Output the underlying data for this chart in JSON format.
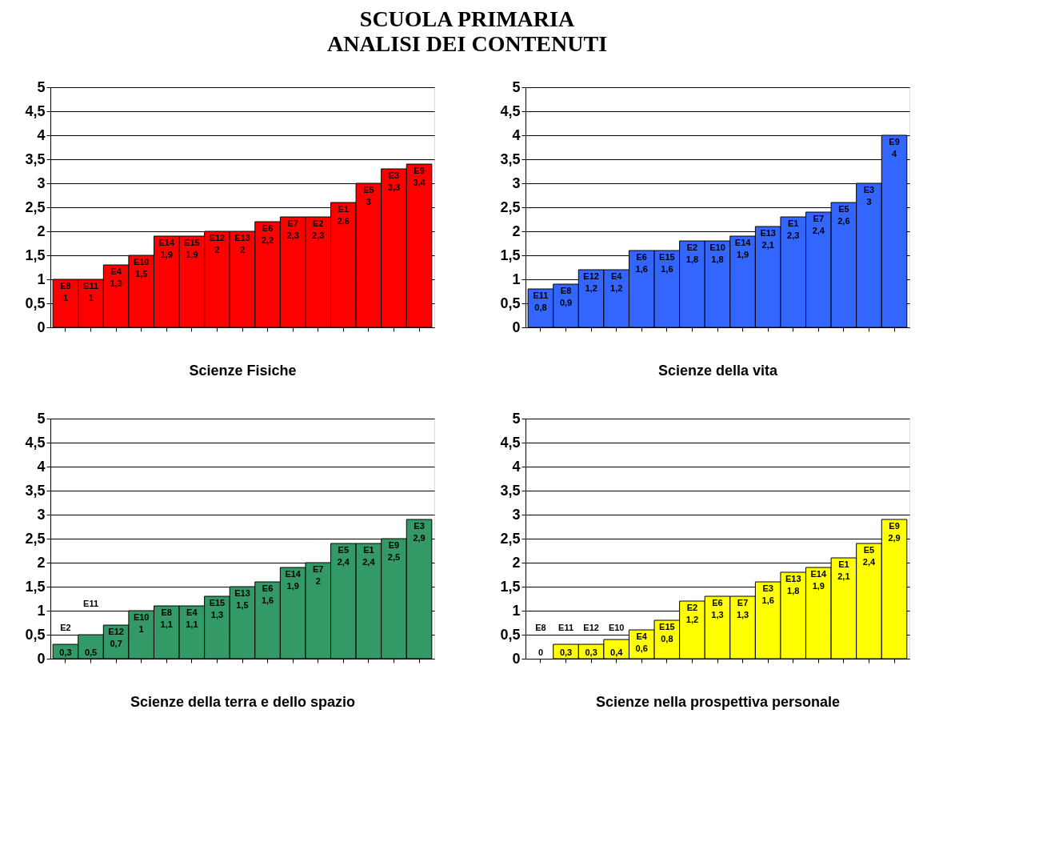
{
  "chart_data": [
    {
      "type": "bar",
      "title": "SCUOLA PRIMARIA",
      "subtitle": "ANALISI DEI CONTENUTI",
      "xlabel": "Scienze Fisiche",
      "color": "#ff0000",
      "categories": [
        "E8",
        "E11",
        "E4",
        "E10",
        "E14",
        "E15",
        "E12",
        "E13",
        "E6",
        "E7",
        "E2",
        "E1",
        "E5",
        "E3",
        "E9"
      ],
      "values": [
        1,
        1,
        1.3,
        1.5,
        1.9,
        1.9,
        2,
        2,
        2.2,
        2.3,
        2.3,
        2.6,
        3,
        3.3,
        3.4
      ],
      "value_labels": [
        "1",
        "1",
        "1,3",
        "1,5",
        "1,9",
        "1,9",
        "2",
        "2",
        "2,2",
        "2,3",
        "2,3",
        "2,6",
        "3",
        "3,3",
        "3,4"
      ],
      "ylim": [
        0,
        5
      ],
      "yticks": [
        0,
        {
          "value": 0.5,
          "label": "0,5"
        },
        1,
        {
          "value": 1.5,
          "label": "1,5"
        },
        2,
        {
          "value": 2.5,
          "label": "2,5"
        },
        3,
        {
          "value": 3.5,
          "label": "3,5"
        },
        4,
        {
          "value": 4.5,
          "label": "4,5"
        },
        5
      ],
      "grid": "y",
      "tick_labels": "y"
    },
    {
      "type": "bar",
      "xlabel": "Scienze della vita",
      "color": "#3366ff",
      "categories": [
        "E11",
        "E8",
        "E12",
        "E4",
        "E6",
        "E15",
        "E2",
        "E10",
        "E14",
        "E13",
        "E1",
        "E7",
        "E5",
        "E3",
        "E9"
      ],
      "values": [
        0.8,
        0.9,
        1.2,
        1.2,
        1.6,
        1.6,
        1.8,
        1.8,
        1.9,
        2.1,
        2.3,
        2.4,
        2.6,
        3,
        4
      ],
      "value_labels": [
        "0,8",
        "0,9",
        "1,2",
        "1,2",
        "1,6",
        "1,6",
        "1,8",
        "1,8",
        "1,9",
        "2,1",
        "2,3",
        "2,4",
        "2,6",
        "3",
        "4"
      ],
      "ylim": [
        0,
        5
      ],
      "yticks": [
        0,
        {
          "value": 0.5,
          "label": "0,5"
        },
        1,
        {
          "value": 1.5,
          "label": "1,5"
        },
        2,
        {
          "value": 2.5,
          "label": "2,5"
        },
        3,
        {
          "value": 3.5,
          "label": "3,5"
        },
        4,
        {
          "value": 4.5,
          "label": "4,5"
        },
        5
      ],
      "grid": "y",
      "tick_labels": "y"
    },
    {
      "type": "bar",
      "xlabel": "Scienze della terra e dello spazio",
      "color": "#339966",
      "categories": [
        "E2",
        "E11",
        "E12",
        "E10",
        "E8",
        "E4",
        "E15",
        "E13",
        "E6",
        "E14",
        "E7",
        "E5",
        "E1",
        "E9",
        "E3"
      ],
      "values": [
        0.3,
        0.5,
        0.7,
        1,
        1.1,
        1.1,
        1.3,
        1.5,
        1.6,
        1.9,
        2,
        2.4,
        2.4,
        2.5,
        2.9
      ],
      "value_labels": [
        "0,3",
        "0,5",
        "0,7",
        "1",
        "1,1",
        "1,1",
        "1,3",
        "1,5",
        "1,6",
        "1,9",
        "2",
        "2,4",
        "2,4",
        "2,5",
        "2,9"
      ],
      "ylim": [
        0,
        5
      ],
      "yticks": [
        0,
        {
          "value": 0.5,
          "label": "0,5"
        },
        1,
        {
          "value": 1.5,
          "label": "1,5"
        },
        2,
        {
          "value": 2.5,
          "label": "2,5"
        },
        3,
        {
          "value": 3.5,
          "label": "3,5"
        },
        4,
        {
          "value": 4.5,
          "label": "4,5"
        },
        5
      ],
      "grid": "y",
      "tick_labels": "y"
    },
    {
      "type": "bar",
      "xlabel": "Scienze nella prospettiva personale",
      "color": "#ffff00",
      "categories": [
        "E8",
        "E11",
        "E12",
        "E10",
        "E4",
        "E15",
        "E2",
        "E6",
        "E7",
        "E3",
        "E13",
        "E14",
        "E1",
        "E5",
        "E9"
      ],
      "values": [
        0,
        0.3,
        0.3,
        0.4,
        0.6,
        0.8,
        1.2,
        1.3,
        1.3,
        1.6,
        1.8,
        1.9,
        2.1,
        2.4,
        2.9
      ],
      "value_labels": [
        "0",
        "0,3",
        "0,3",
        "0,4",
        "0,6",
        "0,8",
        "1,2",
        "1,3",
        "1,3",
        "1,6",
        "1,8",
        "1,9",
        "2,1",
        "2,4",
        "2,9"
      ],
      "ylim": [
        0,
        5
      ],
      "yticks": [
        0,
        {
          "value": 0.5,
          "label": "0,5"
        },
        1,
        {
          "value": 1.5,
          "label": "1,5"
        },
        2,
        {
          "value": 2.5,
          "label": "2,5"
        },
        3,
        {
          "value": 3.5,
          "label": "3,5"
        },
        4,
        {
          "value": 4.5,
          "label": "4,5"
        },
        5
      ],
      "grid": "y",
      "tick_labels": "y"
    }
  ]
}
